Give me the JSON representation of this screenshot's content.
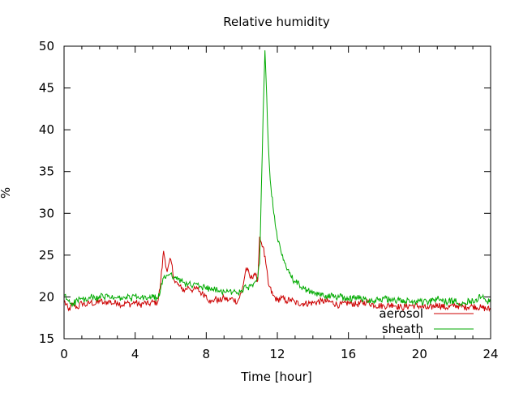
{
  "chart_data": {
    "type": "line",
    "title": "Relative humidity",
    "xlabel": "Time [hour]",
    "ylabel": "%",
    "xlim": [
      0,
      24
    ],
    "ylim": [
      15,
      50
    ],
    "x_ticks": [
      0,
      4,
      8,
      12,
      16,
      20,
      24
    ],
    "y_ticks": [
      15,
      20,
      25,
      30,
      35,
      40,
      45,
      50
    ],
    "grid": false,
    "legend_position": "bottom-right",
    "series": [
      {
        "name": "aerosol",
        "color": "#cc0000",
        "x": [
          0,
          0.25,
          0.5,
          0.75,
          1,
          1.25,
          1.5,
          1.75,
          2,
          2.25,
          2.5,
          2.75,
          3,
          3.25,
          3.5,
          3.75,
          4,
          4.25,
          4.5,
          4.75,
          5,
          5.25,
          5.4,
          5.6,
          5.8,
          6.0,
          6.2,
          6.4,
          6.6,
          6.8,
          7.0,
          7.25,
          7.5,
          7.75,
          8,
          8.25,
          8.5,
          8.75,
          9,
          9.25,
          9.5,
          9.75,
          10,
          10.25,
          10.5,
          10.7,
          10.9,
          11.0,
          11.1,
          11.2,
          11.35,
          11.5,
          11.75,
          12,
          12.25,
          12.5,
          12.75,
          13,
          13.5,
          14,
          14.5,
          15,
          15.5,
          16,
          16.5,
          17,
          17.5,
          18,
          18.5,
          19,
          19.5,
          20,
          20.5,
          21,
          21.5,
          22,
          22.5,
          23,
          23.5,
          24
        ],
        "values": [
          19.6,
          18.4,
          19.1,
          18.7,
          19.3,
          19.0,
          19.4,
          19.1,
          19.6,
          19.2,
          19.5,
          19.2,
          19.4,
          19.0,
          19.3,
          19.1,
          19.4,
          19.0,
          19.3,
          19.1,
          19.4,
          19.3,
          21.0,
          25.5,
          23.0,
          24.5,
          22.0,
          21.5,
          21.0,
          20.8,
          21.2,
          20.8,
          21.0,
          20.4,
          20.2,
          19.3,
          19.8,
          19.5,
          19.9,
          19.6,
          19.8,
          19.4,
          20.6,
          23.5,
          22.2,
          22.8,
          22.0,
          27.2,
          26.5,
          26.0,
          24.0,
          21.5,
          20.2,
          19.6,
          19.9,
          19.5,
          19.7,
          19.3,
          19.2,
          19.3,
          19.5,
          19.4,
          19.0,
          19.3,
          19.1,
          19.4,
          19.0,
          18.9,
          19.1,
          18.7,
          19.0,
          18.9,
          18.6,
          19.1,
          18.7,
          19.0,
          18.8,
          18.9,
          18.7,
          18.5
        ]
      },
      {
        "name": "sheath",
        "color": "#00aa00",
        "x": [
          0,
          0.25,
          0.5,
          0.75,
          1,
          1.25,
          1.5,
          1.75,
          2,
          2.25,
          2.5,
          2.75,
          3,
          3.25,
          3.5,
          3.75,
          4,
          4.25,
          4.5,
          4.75,
          5,
          5.25,
          5.4,
          5.6,
          5.8,
          6.0,
          6.2,
          6.4,
          6.6,
          6.8,
          7.0,
          7.25,
          7.5,
          7.75,
          8,
          8.25,
          8.5,
          8.75,
          9,
          9.25,
          9.5,
          9.75,
          10,
          10.25,
          10.5,
          10.7,
          10.9,
          11.0,
          11.1,
          11.2,
          11.3,
          11.4,
          11.5,
          11.6,
          11.8,
          12,
          12.25,
          12.5,
          12.75,
          13,
          13.5,
          14,
          14.5,
          15,
          15.5,
          16,
          16.5,
          17,
          17.5,
          18,
          18.5,
          19,
          19.5,
          20,
          20.5,
          21,
          21.5,
          22,
          22.5,
          23,
          23.5,
          24
        ],
        "values": [
          20.2,
          19.5,
          19.2,
          19.6,
          19.8,
          19.5,
          20.0,
          19.7,
          20.1,
          19.9,
          20.2,
          19.8,
          19.9,
          19.7,
          20.0,
          19.8,
          20.1,
          19.8,
          19.9,
          19.9,
          20.0,
          19.8,
          20.5,
          22.3,
          22.6,
          22.8,
          22.4,
          22.0,
          21.9,
          21.6,
          21.6,
          21.3,
          21.5,
          21.1,
          21.2,
          20.8,
          20.9,
          20.6,
          20.7,
          20.6,
          20.6,
          20.5,
          20.8,
          21.1,
          21.3,
          21.7,
          22.4,
          24.0,
          33.0,
          42.0,
          49.5,
          44.0,
          38.0,
          34.0,
          30.0,
          27.0,
          25.0,
          23.5,
          22.5,
          21.8,
          21.0,
          20.4,
          20.2,
          20.1,
          20.0,
          19.8,
          19.9,
          19.7,
          19.6,
          19.8,
          19.5,
          19.6,
          19.4,
          19.5,
          19.3,
          19.8,
          19.4,
          19.5,
          19.3,
          19.6,
          20.0,
          19.3
        ]
      }
    ]
  }
}
